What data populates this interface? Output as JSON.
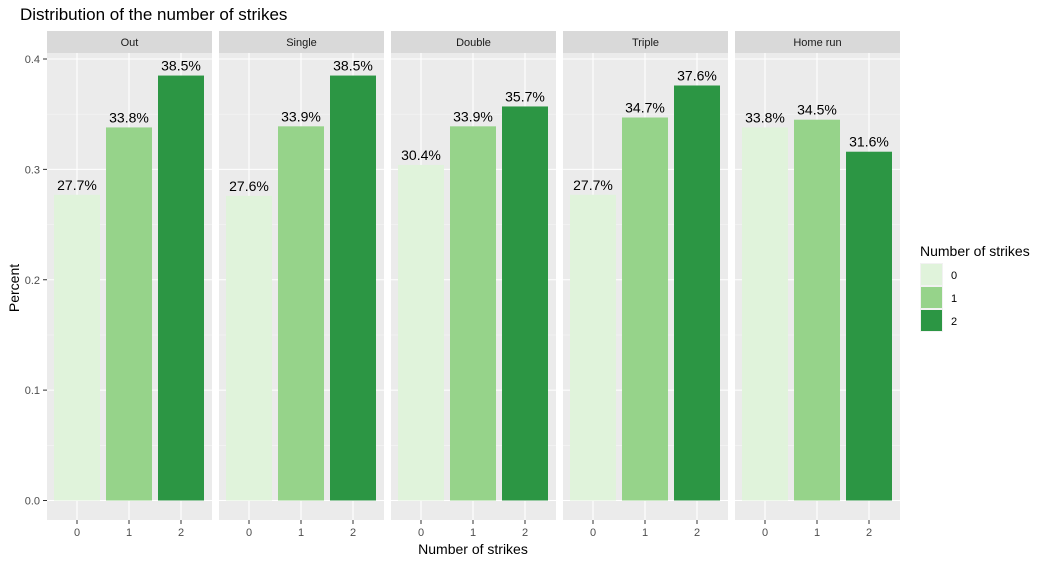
{
  "chart_data": {
    "type": "bar",
    "title": "Distribution of the number of strikes",
    "xlabel": "Number of strikes",
    "ylabel": "Percent",
    "ylim": [
      0,
      0.4
    ],
    "y_ticks": [
      "0.0",
      "0.1",
      "0.2",
      "0.3",
      "0.4"
    ],
    "y_tick_values": [
      0,
      0.1,
      0.2,
      0.3,
      0.4
    ],
    "categories": [
      "0",
      "1",
      "2"
    ],
    "colors": [
      "#e0f3db",
      "#96d38a",
      "#2c9644"
    ],
    "grid": true,
    "panel_background": "#ebebeb",
    "strip_background": "#d9d9d9",
    "legend": {
      "title": "Number of strikes",
      "entries": [
        "0",
        "1",
        "2"
      ],
      "position": "right"
    },
    "facets": [
      {
        "name": "Out",
        "values": [
          0.277,
          0.338,
          0.385
        ],
        "labels": [
          "27.7%",
          "33.8%",
          "38.5%"
        ]
      },
      {
        "name": "Single",
        "values": [
          0.276,
          0.339,
          0.385
        ],
        "labels": [
          "27.6%",
          "33.9%",
          "38.5%"
        ]
      },
      {
        "name": "Double",
        "values": [
          0.304,
          0.339,
          0.357
        ],
        "labels": [
          "30.4%",
          "33.9%",
          "35.7%"
        ]
      },
      {
        "name": "Triple",
        "values": [
          0.277,
          0.347,
          0.376
        ],
        "labels": [
          "27.7%",
          "34.7%",
          "37.6%"
        ]
      },
      {
        "name": "Home run",
        "values": [
          0.338,
          0.345,
          0.316
        ],
        "labels": [
          "33.8%",
          "34.5%",
          "31.6%"
        ]
      }
    ]
  }
}
